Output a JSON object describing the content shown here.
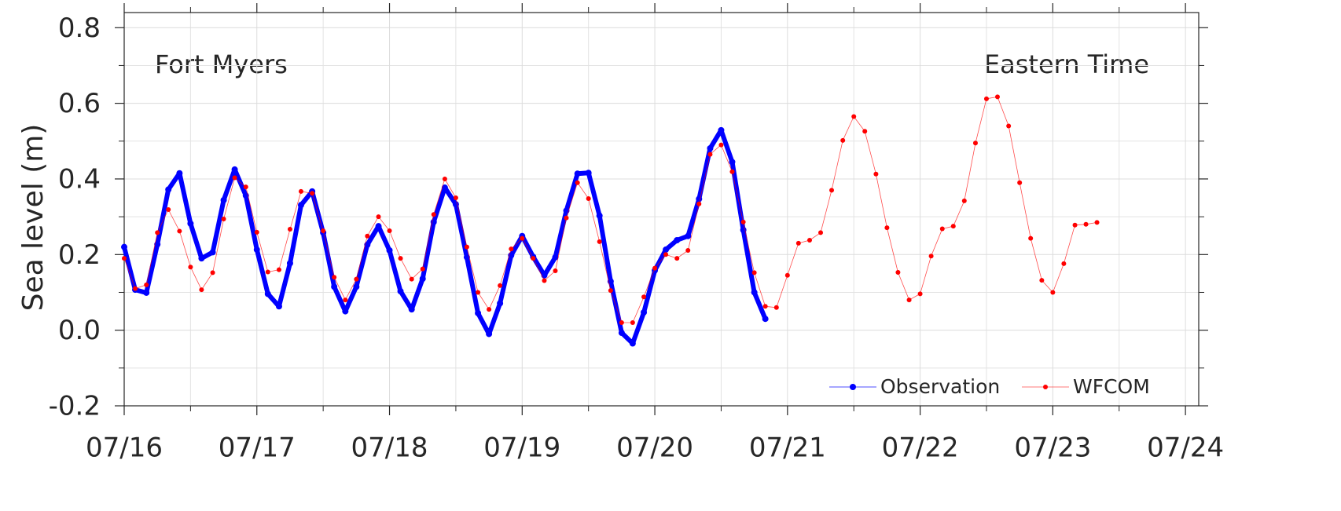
{
  "chart_data": {
    "type": "line",
    "ylabel": "Sea level (m)",
    "annotations": [
      "Fort Myers",
      "Eastern Time"
    ],
    "xlim": [
      0,
      8.1
    ],
    "ylim": [
      -0.2,
      0.84
    ],
    "xticks": [
      {
        "value": 0,
        "label": "07/16"
      },
      {
        "value": 1,
        "label": "07/17"
      },
      {
        "value": 2,
        "label": "07/18"
      },
      {
        "value": 3,
        "label": "07/19"
      },
      {
        "value": 4,
        "label": "07/20"
      },
      {
        "value": 5,
        "label": "07/21"
      },
      {
        "value": 6,
        "label": "07/22"
      },
      {
        "value": 7,
        "label": "07/23"
      },
      {
        "value": 8,
        "label": "07/24"
      }
    ],
    "yticks": [
      0.8,
      0.6,
      0.4,
      0.2,
      {
        "value": 0,
        "label": "0.0"
      },
      -0.2
    ],
    "minor_xticks": [
      0.5,
      1.5,
      2.5,
      3.5,
      4.5,
      5.5,
      6.5,
      7.5
    ],
    "minor_yticks": [
      0.7,
      0.5,
      0.3,
      0.1,
      -0.1
    ],
    "grid": true,
    "legend": "lower right",
    "series": [
      {
        "name": "Observation",
        "color": "#0000ff",
        "x": [
          0,
          0.083,
          0.167,
          0.25,
          0.333,
          0.417,
          0.5,
          0.583,
          0.667,
          0.75,
          0.833,
          0.917,
          1,
          1.083,
          1.167,
          1.25,
          1.333,
          1.417,
          1.5,
          1.583,
          1.667,
          1.75,
          1.833,
          1.917,
          2,
          2.083,
          2.167,
          2.25,
          2.333,
          2.417,
          2.5,
          2.583,
          2.667,
          2.75,
          2.833,
          2.917,
          3,
          3.083,
          3.167,
          3.25,
          3.333,
          3.417,
          3.5,
          3.583,
          3.667,
          3.75,
          3.833,
          3.917,
          4,
          4.083,
          4.167,
          4.25,
          4.333,
          4.417,
          4.5,
          4.583,
          4.667,
          4.75,
          4.833
        ],
        "values": [
          0.22,
          0.107,
          0.099,
          0.227,
          0.372,
          0.415,
          0.282,
          0.19,
          0.206,
          0.344,
          0.425,
          0.356,
          0.213,
          0.096,
          0.063,
          0.177,
          0.331,
          0.367,
          0.258,
          0.115,
          0.05,
          0.115,
          0.226,
          0.275,
          0.211,
          0.103,
          0.055,
          0.136,
          0.286,
          0.377,
          0.333,
          0.193,
          0.045,
          -0.01,
          0.071,
          0.198,
          0.249,
          0.194,
          0.145,
          0.193,
          0.316,
          0.414,
          0.416,
          0.303,
          0.129,
          -0.007,
          -0.035,
          0.047,
          0.158,
          0.213,
          0.238,
          0.249,
          0.347,
          0.481,
          0.529,
          0.445,
          0.265,
          0.1,
          0.03
        ]
      },
      {
        "name": "WFCOM",
        "color": "#ff0000",
        "x": [
          0,
          0.083,
          0.167,
          0.25,
          0.333,
          0.417,
          0.5,
          0.583,
          0.667,
          0.75,
          0.833,
          0.917,
          1,
          1.083,
          1.167,
          1.25,
          1.333,
          1.417,
          1.5,
          1.583,
          1.667,
          1.75,
          1.833,
          1.917,
          2,
          2.083,
          2.167,
          2.25,
          2.333,
          2.417,
          2.5,
          2.583,
          2.667,
          2.75,
          2.833,
          2.917,
          3,
          3.083,
          3.167,
          3.25,
          3.333,
          3.417,
          3.5,
          3.583,
          3.667,
          3.75,
          3.833,
          3.917,
          4,
          4.083,
          4.167,
          4.25,
          4.333,
          4.417,
          4.5,
          4.583,
          4.667,
          4.75,
          4.833,
          4.917,
          5,
          5.083,
          5.167,
          5.25,
          5.333,
          5.417,
          5.5,
          5.583,
          5.667,
          5.75,
          5.833,
          5.917,
          6,
          6.083,
          6.167,
          6.25,
          6.333,
          6.417,
          6.5,
          6.583,
          6.667,
          6.75,
          6.833,
          6.917,
          7,
          7.083,
          7.167,
          7.25,
          7.333
        ],
        "values": [
          0.19,
          0.11,
          0.12,
          0.258,
          0.319,
          0.262,
          0.167,
          0.107,
          0.152,
          0.294,
          0.403,
          0.379,
          0.259,
          0.154,
          0.16,
          0.267,
          0.367,
          0.362,
          0.263,
          0.14,
          0.08,
          0.135,
          0.249,
          0.3,
          0.263,
          0.19,
          0.135,
          0.162,
          0.306,
          0.4,
          0.35,
          0.22,
          0.1,
          0.055,
          0.118,
          0.215,
          0.243,
          0.19,
          0.131,
          0.157,
          0.297,
          0.39,
          0.348,
          0.234,
          0.105,
          0.02,
          0.02,
          0.088,
          0.164,
          0.2,
          0.19,
          0.211,
          0.334,
          0.465,
          0.49,
          0.419,
          0.286,
          0.152,
          0.063,
          0.06,
          0.145,
          0.23,
          0.238,
          0.258,
          0.37,
          0.502,
          0.565,
          0.526,
          0.413,
          0.271,
          0.153,
          0.08,
          0.096,
          0.196,
          0.268,
          0.275,
          0.342,
          0.495,
          0.612,
          0.617,
          0.54,
          0.39,
          0.243,
          0.132,
          0.1,
          0.176,
          0.278,
          0.28,
          0.285
        ]
      }
    ]
  }
}
